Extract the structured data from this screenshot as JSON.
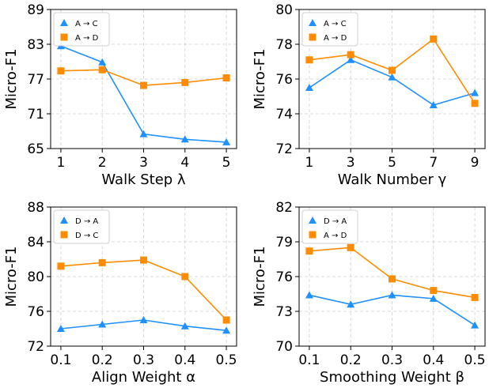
{
  "chart_data": [
    {
      "type": "line",
      "xlabel": "Walk Step λ",
      "ylabel": "Micro-F1",
      "x": [
        1,
        2,
        3,
        4,
        5
      ],
      "xticks": [
        "1",
        "2",
        "3",
        "4",
        "5"
      ],
      "ylim": [
        65,
        89
      ],
      "yticks": [
        "65",
        "71",
        "77",
        "83",
        "89"
      ],
      "grid": true,
      "legend_position": "top-left",
      "series": [
        {
          "name": "A → C",
          "color": "#1e90ff",
          "marker": "triangle",
          "values": [
            82.7,
            79.9,
            67.5,
            66.6,
            66.1
          ]
        },
        {
          "name": "A → D",
          "color": "#ff8c00",
          "marker": "square",
          "values": [
            78.4,
            78.6,
            75.9,
            76.4,
            77.2
          ]
        }
      ]
    },
    {
      "type": "line",
      "xlabel": "Walk Number γ",
      "ylabel": "Micro-F1",
      "x": [
        1,
        3,
        5,
        7,
        9
      ],
      "xticks": [
        "1",
        "3",
        "5",
        "7",
        "9"
      ],
      "ylim": [
        72,
        80
      ],
      "yticks": [
        "72",
        "74",
        "76",
        "78",
        "80"
      ],
      "grid": true,
      "legend_position": "top-left",
      "series": [
        {
          "name": "A → C",
          "color": "#1e90ff",
          "marker": "triangle",
          "values": [
            75.5,
            77.1,
            76.1,
            74.5,
            75.2
          ]
        },
        {
          "name": "A → D",
          "color": "#ff8c00",
          "marker": "square",
          "values": [
            77.1,
            77.4,
            76.5,
            78.3,
            74.6
          ]
        }
      ]
    },
    {
      "type": "line",
      "xlabel": "Align Weight α",
      "ylabel": "Micro-F1",
      "x": [
        0.1,
        0.2,
        0.3,
        0.4,
        0.5
      ],
      "xticks": [
        "0.1",
        "0.2",
        "0.3",
        "0.4",
        "0.5"
      ],
      "ylim": [
        72,
        88
      ],
      "yticks": [
        "72",
        "76",
        "80",
        "84",
        "88"
      ],
      "grid": true,
      "legend_position": "top-left",
      "series": [
        {
          "name": "D → A",
          "color": "#1e90ff",
          "marker": "triangle",
          "values": [
            74.0,
            74.5,
            75.0,
            74.3,
            73.8
          ]
        },
        {
          "name": "D → C",
          "color": "#ff8c00",
          "marker": "square",
          "values": [
            81.2,
            81.6,
            81.9,
            80.0,
            75.0
          ]
        }
      ]
    },
    {
      "type": "line",
      "xlabel": "Smoothing Weight β",
      "ylabel": "Micro-F1",
      "x": [
        0.1,
        0.2,
        0.3,
        0.4,
        0.5
      ],
      "xticks": [
        "0.1",
        "0.2",
        "0.3",
        "0.4",
        "0.5"
      ],
      "ylim": [
        70,
        82
      ],
      "yticks": [
        "70",
        "73",
        "76",
        "79",
        "82"
      ],
      "grid": true,
      "legend_position": "top-left",
      "series": [
        {
          "name": "D → A",
          "color": "#1e90ff",
          "marker": "triangle",
          "values": [
            74.4,
            73.6,
            74.4,
            74.1,
            71.8
          ]
        },
        {
          "name": "A → D",
          "color": "#ff8c00",
          "marker": "square",
          "values": [
            78.2,
            78.5,
            75.8,
            74.8,
            74.2
          ]
        }
      ]
    }
  ]
}
